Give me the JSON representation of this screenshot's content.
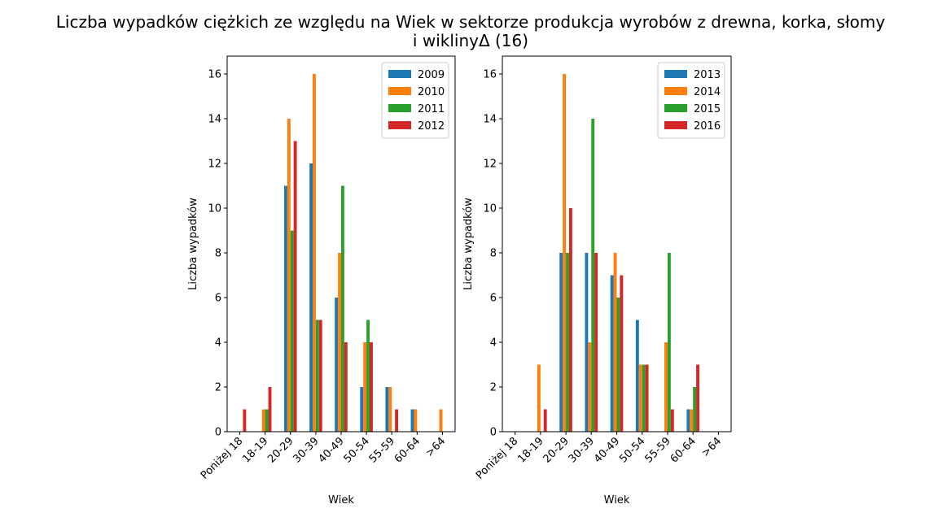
{
  "figure": {
    "title_line1": "Liczba wypadków ciężkich ze względu na Wiek w sektorze produkcja wyrobów z drewna, korka, słomy",
    "title_line2": "i wiklinyΔ (16)"
  },
  "colors": {
    "series": [
      "#1f77b4",
      "#ff7f0e",
      "#2ca02c",
      "#d62728"
    ]
  },
  "chart_data": [
    {
      "type": "bar",
      "xlabel": "Wiek",
      "ylabel": "Liczba wypadków",
      "ylim": [
        0,
        16.8
      ],
      "yticks": [
        0,
        2,
        4,
        6,
        8,
        10,
        12,
        14,
        16
      ],
      "legend_position": "top-right",
      "grid": false,
      "categories": [
        "Poniżej 18",
        "18-19",
        "20-29",
        "30-39",
        "40-49",
        "50-54",
        "55-59",
        "60-64",
        ">64"
      ],
      "series": [
        {
          "name": "2009",
          "values": [
            0,
            0,
            11,
            12,
            6,
            2,
            2,
            1,
            0
          ]
        },
        {
          "name": "2010",
          "values": [
            0,
            1,
            14,
            16,
            8,
            4,
            2,
            1,
            1
          ]
        },
        {
          "name": "2011",
          "values": [
            0,
            1,
            9,
            5,
            11,
            5,
            0,
            0,
            0
          ]
        },
        {
          "name": "2012",
          "values": [
            1,
            2,
            13,
            5,
            4,
            4,
            1,
            0,
            0
          ]
        }
      ]
    },
    {
      "type": "bar",
      "xlabel": "Wiek",
      "ylabel": "Liczba wypadków",
      "ylim": [
        0,
        16.8
      ],
      "yticks": [
        0,
        2,
        4,
        6,
        8,
        10,
        12,
        14,
        16
      ],
      "legend_position": "top-right",
      "grid": false,
      "categories": [
        "Poniżej 18",
        "18-19",
        "20-29",
        "30-39",
        "40-49",
        "50-54",
        "55-59",
        "60-64",
        ">64"
      ],
      "series": [
        {
          "name": "2013",
          "values": [
            0,
            0,
            8,
            8,
            7,
            5,
            0,
            1,
            0
          ]
        },
        {
          "name": "2014",
          "values": [
            0,
            3,
            16,
            4,
            8,
            3,
            4,
            1,
            0
          ]
        },
        {
          "name": "2015",
          "values": [
            0,
            0,
            8,
            14,
            6,
            3,
            8,
            2,
            0
          ]
        },
        {
          "name": "2016",
          "values": [
            0,
            1,
            10,
            8,
            7,
            3,
            1,
            3,
            0
          ]
        }
      ]
    }
  ]
}
